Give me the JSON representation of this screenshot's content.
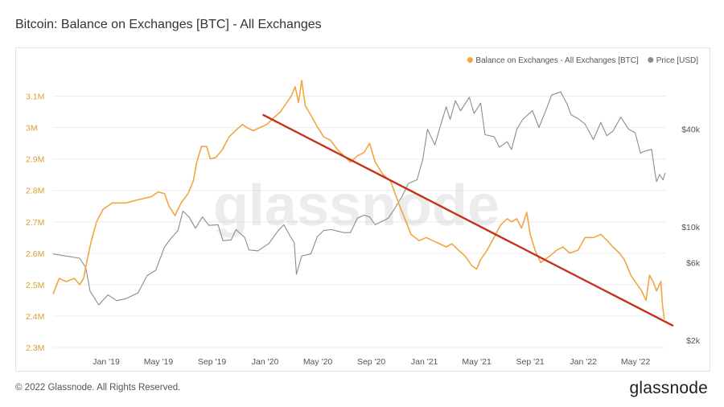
{
  "title": "Bitcoin: Balance on Exchanges [BTC] - All Exchanges",
  "watermark": "glassnode",
  "footer": {
    "copyright": "© 2022 Glassnode. All Rights Reserved.",
    "logo": "glassnode"
  },
  "colors": {
    "balance": "#f2a541",
    "price": "#8c8c8c",
    "trend": "#c4331a"
  },
  "chart_data": {
    "type": "line",
    "legend": [
      {
        "name": "Balance on Exchanges - All Exchanges [BTC]",
        "color": "#f2a541"
      },
      {
        "name": "Price [USD]",
        "color": "#8c8c8c"
      }
    ],
    "legend_position": "top-right",
    "grid": "horizontal",
    "x_ticks": [
      "Jan '19",
      "May '19",
      "Sep '19",
      "Jan '20",
      "May '20",
      "Sep '20",
      "Jan '21",
      "May '21",
      "Sep '21",
      "Jan '22",
      "May '22"
    ],
    "x_range": [
      "2018-09-01",
      "2022-07-10"
    ],
    "y_left": {
      "ticks": [
        "2.3M",
        "2.4M",
        "2.5M",
        "2.6M",
        "2.7M",
        "2.8M",
        "2.9M",
        "3M",
        "3.1M"
      ],
      "range": [
        2300000,
        3150000
      ]
    },
    "y_right": {
      "scale": "log",
      "ticks": [
        "$2k",
        "$6k",
        "$10k",
        "$40k"
      ],
      "tick_values": [
        2000,
        6000,
        10000,
        40000
      ],
      "range": [
        1800,
        80000
      ]
    },
    "series": [
      {
        "name": "Balance on Exchanges - All Exchanges [BTC]",
        "axis": "left",
        "points": [
          [
            "2018-09-01",
            2470000
          ],
          [
            "2018-09-15",
            2520000
          ],
          [
            "2018-10-01",
            2510000
          ],
          [
            "2018-10-20",
            2520000
          ],
          [
            "2018-11-01",
            2500000
          ],
          [
            "2018-11-10",
            2520000
          ],
          [
            "2018-11-20",
            2590000
          ],
          [
            "2018-11-28",
            2640000
          ],
          [
            "2018-12-10",
            2700000
          ],
          [
            "2018-12-25",
            2740000
          ],
          [
            "2019-01-15",
            2760000
          ],
          [
            "2019-02-15",
            2760000
          ],
          [
            "2019-03-15",
            2770000
          ],
          [
            "2019-04-15",
            2780000
          ],
          [
            "2019-04-30",
            2795000
          ],
          [
            "2019-05-15",
            2790000
          ],
          [
            "2019-05-25",
            2750000
          ],
          [
            "2019-06-08",
            2720000
          ],
          [
            "2019-06-22",
            2760000
          ],
          [
            "2019-07-08",
            2790000
          ],
          [
            "2019-07-20",
            2830000
          ],
          [
            "2019-07-28",
            2890000
          ],
          [
            "2019-08-08",
            2940000
          ],
          [
            "2019-08-20",
            2940000
          ],
          [
            "2019-08-28",
            2900000
          ],
          [
            "2019-09-10",
            2905000
          ],
          [
            "2019-09-25",
            2930000
          ],
          [
            "2019-10-10",
            2970000
          ],
          [
            "2019-10-25",
            2990000
          ],
          [
            "2019-11-10",
            3010000
          ],
          [
            "2019-11-20",
            3000000
          ],
          [
            "2019-12-05",
            2990000
          ],
          [
            "2019-12-20",
            3000000
          ],
          [
            "2020-01-05",
            3010000
          ],
          [
            "2020-01-20",
            3030000
          ],
          [
            "2020-02-05",
            3050000
          ],
          [
            "2020-02-20",
            3080000
          ],
          [
            "2020-03-01",
            3100000
          ],
          [
            "2020-03-10",
            3130000
          ],
          [
            "2020-03-18",
            3080000
          ],
          [
            "2020-03-25",
            3150000
          ],
          [
            "2020-04-02",
            3070000
          ],
          [
            "2020-04-15",
            3040000
          ],
          [
            "2020-05-01",
            3000000
          ],
          [
            "2020-05-15",
            2970000
          ],
          [
            "2020-05-30",
            2960000
          ],
          [
            "2020-06-15",
            2930000
          ],
          [
            "2020-06-30",
            2910000
          ],
          [
            "2020-07-15",
            2890000
          ],
          [
            "2020-07-31",
            2910000
          ],
          [
            "2020-08-15",
            2920000
          ],
          [
            "2020-08-28",
            2950000
          ],
          [
            "2020-09-10",
            2890000
          ],
          [
            "2020-09-28",
            2850000
          ],
          [
            "2020-10-15",
            2830000
          ],
          [
            "2020-10-28",
            2780000
          ],
          [
            "2020-11-08",
            2740000
          ],
          [
            "2020-11-20",
            2700000
          ],
          [
            "2020-12-01",
            2660000
          ],
          [
            "2020-12-20",
            2640000
          ],
          [
            "2021-01-05",
            2650000
          ],
          [
            "2021-01-20",
            2640000
          ],
          [
            "2021-02-05",
            2630000
          ],
          [
            "2021-02-20",
            2620000
          ],
          [
            "2021-03-05",
            2630000
          ],
          [
            "2021-03-20",
            2610000
          ],
          [
            "2021-04-05",
            2590000
          ],
          [
            "2021-04-20",
            2560000
          ],
          [
            "2021-05-01",
            2550000
          ],
          [
            "2021-05-10",
            2580000
          ],
          [
            "2021-05-25",
            2610000
          ],
          [
            "2021-06-10",
            2650000
          ],
          [
            "2021-06-25",
            2690000
          ],
          [
            "2021-07-10",
            2710000
          ],
          [
            "2021-07-20",
            2700000
          ],
          [
            "2021-08-01",
            2710000
          ],
          [
            "2021-08-12",
            2680000
          ],
          [
            "2021-08-24",
            2730000
          ],
          [
            "2021-09-01",
            2660000
          ],
          [
            "2021-09-12",
            2610000
          ],
          [
            "2021-09-25",
            2570000
          ],
          [
            "2021-10-15",
            2590000
          ],
          [
            "2021-11-01",
            2610000
          ],
          [
            "2021-11-15",
            2620000
          ],
          [
            "2021-12-01",
            2600000
          ],
          [
            "2021-12-20",
            2610000
          ],
          [
            "2022-01-05",
            2650000
          ],
          [
            "2022-01-25",
            2650000
          ],
          [
            "2022-02-10",
            2660000
          ],
          [
            "2022-02-25",
            2640000
          ],
          [
            "2022-03-10",
            2620000
          ],
          [
            "2022-03-25",
            2600000
          ],
          [
            "2022-04-05",
            2580000
          ],
          [
            "2022-04-20",
            2530000
          ],
          [
            "2022-05-05",
            2500000
          ],
          [
            "2022-05-15",
            2480000
          ],
          [
            "2022-05-25",
            2450000
          ],
          [
            "2022-06-02",
            2530000
          ],
          [
            "2022-06-10",
            2510000
          ],
          [
            "2022-06-18",
            2480000
          ],
          [
            "2022-06-28",
            2510000
          ],
          [
            "2022-07-02",
            2430000
          ],
          [
            "2022-07-06",
            2390000
          ]
        ]
      },
      {
        "name": "Price [USD]",
        "axis": "right",
        "points": [
          [
            "2018-09-01",
            6800
          ],
          [
            "2018-10-01",
            6600
          ],
          [
            "2018-11-01",
            6400
          ],
          [
            "2018-11-15",
            5600
          ],
          [
            "2018-11-25",
            4000
          ],
          [
            "2018-12-15",
            3300
          ],
          [
            "2019-01-05",
            3800
          ],
          [
            "2019-01-25",
            3500
          ],
          [
            "2019-02-15",
            3600
          ],
          [
            "2019-03-15",
            3900
          ],
          [
            "2019-04-05",
            5000
          ],
          [
            "2019-04-25",
            5400
          ],
          [
            "2019-05-15",
            7500
          ],
          [
            "2019-05-30",
            8500
          ],
          [
            "2019-06-15",
            9500
          ],
          [
            "2019-06-26",
            12500
          ],
          [
            "2019-07-10",
            11500
          ],
          [
            "2019-07-25",
            9800
          ],
          [
            "2019-08-10",
            11500
          ],
          [
            "2019-08-25",
            10200
          ],
          [
            "2019-09-15",
            10300
          ],
          [
            "2019-09-26",
            8200
          ],
          [
            "2019-10-15",
            8300
          ],
          [
            "2019-10-26",
            9600
          ],
          [
            "2019-11-15",
            8600
          ],
          [
            "2019-11-25",
            7200
          ],
          [
            "2019-12-15",
            7100
          ],
          [
            "2020-01-10",
            7900
          ],
          [
            "2020-01-30",
            9400
          ],
          [
            "2020-02-13",
            10300
          ],
          [
            "2020-02-28",
            8700
          ],
          [
            "2020-03-08",
            8000
          ],
          [
            "2020-03-13",
            5100
          ],
          [
            "2020-03-25",
            6600
          ],
          [
            "2020-04-15",
            6800
          ],
          [
            "2020-04-30",
            8700
          ],
          [
            "2020-05-15",
            9500
          ],
          [
            "2020-06-01",
            9600
          ],
          [
            "2020-06-30",
            9200
          ],
          [
            "2020-07-15",
            9200
          ],
          [
            "2020-07-31",
            11300
          ],
          [
            "2020-08-15",
            11800
          ],
          [
            "2020-08-28",
            11500
          ],
          [
            "2020-09-10",
            10300
          ],
          [
            "2020-10-10",
            11300
          ],
          [
            "2020-10-25",
            13000
          ],
          [
            "2020-11-10",
            15300
          ],
          [
            "2020-11-25",
            18500
          ],
          [
            "2020-12-15",
            19500
          ],
          [
            "2020-12-28",
            26000
          ],
          [
            "2021-01-08",
            40000
          ],
          [
            "2021-01-25",
            32000
          ],
          [
            "2021-02-10",
            45000
          ],
          [
            "2021-02-20",
            55000
          ],
          [
            "2021-03-01",
            46000
          ],
          [
            "2021-03-13",
            60000
          ],
          [
            "2021-03-25",
            52000
          ],
          [
            "2021-04-14",
            63000
          ],
          [
            "2021-04-25",
            50000
          ],
          [
            "2021-05-10",
            58000
          ],
          [
            "2021-05-20",
            37000
          ],
          [
            "2021-06-10",
            36000
          ],
          [
            "2021-06-22",
            31000
          ],
          [
            "2021-07-10",
            33500
          ],
          [
            "2021-07-20",
            30000
          ],
          [
            "2021-08-01",
            40000
          ],
          [
            "2021-08-15",
            46000
          ],
          [
            "2021-09-06",
            52000
          ],
          [
            "2021-09-21",
            41000
          ],
          [
            "2021-10-10",
            55000
          ],
          [
            "2021-10-20",
            65000
          ],
          [
            "2021-11-10",
            68000
          ],
          [
            "2021-11-25",
            57000
          ],
          [
            "2021-12-04",
            49000
          ],
          [
            "2021-12-20",
            46500
          ],
          [
            "2022-01-05",
            43000
          ],
          [
            "2022-01-24",
            34500
          ],
          [
            "2022-02-10",
            44000
          ],
          [
            "2022-02-24",
            36500
          ],
          [
            "2022-03-10",
            39000
          ],
          [
            "2022-03-28",
            47500
          ],
          [
            "2022-04-15",
            40000
          ],
          [
            "2022-04-30",
            38000
          ],
          [
            "2022-05-12",
            28500
          ],
          [
            "2022-05-25",
            29500
          ],
          [
            "2022-06-07",
            30000
          ],
          [
            "2022-06-14",
            22000
          ],
          [
            "2022-06-18",
            19000
          ],
          [
            "2022-06-25",
            21000
          ],
          [
            "2022-07-03",
            19500
          ],
          [
            "2022-07-08",
            21500
          ]
        ]
      }
    ],
    "annotations": [
      {
        "type": "trendline",
        "from": [
          "2019-12-28",
          3040000
        ],
        "to": [
          "2022-07-25",
          2370000
        ]
      }
    ]
  }
}
